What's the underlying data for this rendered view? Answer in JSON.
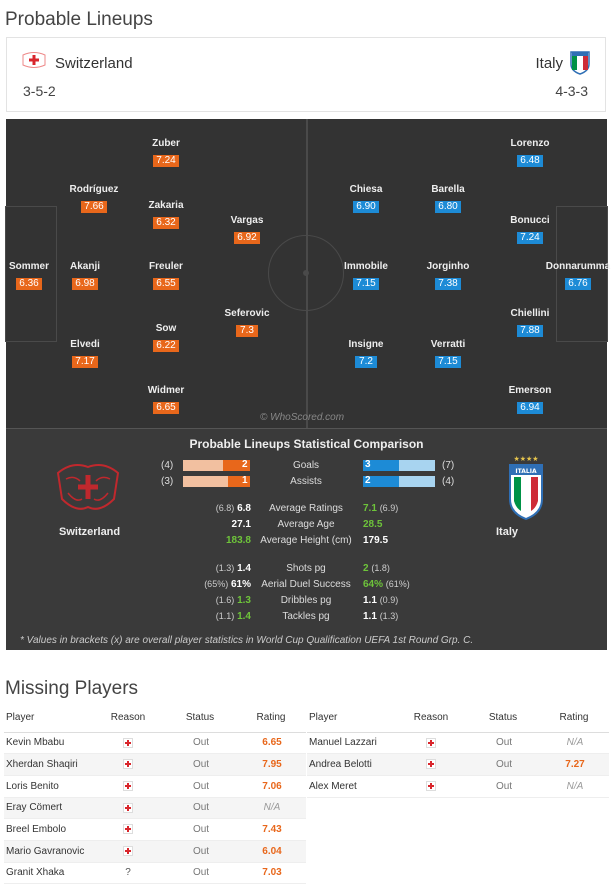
{
  "lineups": {
    "title": "Probable Lineups",
    "home": {
      "name": "Switzerland",
      "formation": "3-5-2"
    },
    "away": {
      "name": "Italy",
      "formation": "4-3-3"
    },
    "watermark": "© WhoScored.com",
    "home_players": [
      {
        "name": "Zuber",
        "rating": "7.24"
      },
      {
        "name": "Rodríguez",
        "rating": "7.66"
      },
      {
        "name": "Zakaria",
        "rating": "6.32"
      },
      {
        "name": "Vargas",
        "rating": "6.92"
      },
      {
        "name": "Sommer",
        "rating": "6.36"
      },
      {
        "name": "Akanji",
        "rating": "6.98"
      },
      {
        "name": "Freuler",
        "rating": "6.55"
      },
      {
        "name": "Seferovic",
        "rating": "7.3"
      },
      {
        "name": "Sow",
        "rating": "6.22"
      },
      {
        "name": "Elvedi",
        "rating": "7.17"
      },
      {
        "name": "Widmer",
        "rating": "6.65"
      }
    ],
    "away_players": [
      {
        "name": "Lorenzo",
        "rating": "6.48"
      },
      {
        "name": "Chiesa",
        "rating": "6.90"
      },
      {
        "name": "Barella",
        "rating": "6.80"
      },
      {
        "name": "Bonucci",
        "rating": "7.24"
      },
      {
        "name": "Immobile",
        "rating": "7.15"
      },
      {
        "name": "Jorginho",
        "rating": "7.38"
      },
      {
        "name": "Donnarumma",
        "rating": "6.76"
      },
      {
        "name": "Chiellini",
        "rating": "7.88"
      },
      {
        "name": "Insigne",
        "rating": "7.2"
      },
      {
        "name": "Verratti",
        "rating": "7.15"
      },
      {
        "name": "Emerson",
        "rating": "6.94"
      }
    ]
  },
  "comparison": {
    "title": "Probable Lineups Statistical Comparison",
    "home_team": "Switzerland",
    "away_team": "Italy",
    "goals": {
      "label": "Goals",
      "home_bracket": "(4)",
      "home": "2",
      "away": "3",
      "away_bracket": "(7)",
      "home_share": 0.4,
      "away_share": 0.5
    },
    "assists": {
      "label": "Assists",
      "home_bracket": "(3)",
      "home": "1",
      "away": "2",
      "away_bracket": "(4)",
      "home_share": 0.33,
      "away_share": 0.5
    },
    "stats": [
      {
        "label": "Average Ratings",
        "home_bracket": "(6.8)",
        "home": "6.8",
        "away": "7.1",
        "away_bracket": "(6.9)",
        "home_green": false,
        "away_green": true
      },
      {
        "label": "Average Age",
        "home_bracket": "",
        "home": "27.1",
        "away": "28.5",
        "away_bracket": "",
        "home_green": false,
        "away_green": true
      },
      {
        "label": "Average Height (cm)",
        "home_bracket": "",
        "home": "183.8",
        "away": "179.5",
        "away_bracket": "",
        "home_green": true,
        "away_green": false
      },
      {
        "label": "Shots pg",
        "home_bracket": "(1.3)",
        "home": "1.4",
        "away": "2",
        "away_bracket": "(1.8)",
        "home_green": false,
        "away_green": true
      },
      {
        "label": "Aerial Duel Success",
        "home_bracket": "(65%)",
        "home": "61%",
        "away": "64%",
        "away_bracket": "(61%)",
        "home_green": false,
        "away_green": true
      },
      {
        "label": "Dribbles pg",
        "home_bracket": "(1.6)",
        "home": "1.3",
        "away": "1.1",
        "away_bracket": "(0.9)",
        "home_green": true,
        "away_green": false
      },
      {
        "label": "Tackles pg",
        "home_bracket": "(1.1)",
        "home": "1.4",
        "away": "1.1",
        "away_bracket": "(1.3)",
        "home_green": true,
        "away_green": false
      }
    ],
    "footnote": "* Values in brackets (x) are overall player statistics in World Cup Qualification UEFA 1st Round Grp. C."
  },
  "missing": {
    "title": "Missing Players",
    "headers": {
      "player": "Player",
      "reason": "Reason",
      "status": "Status",
      "rating": "Rating"
    },
    "home": [
      {
        "player": "Kevin Mbabu",
        "reason": "injury",
        "status": "Out",
        "rating": "6.65"
      },
      {
        "player": "Xherdan Shaqiri",
        "reason": "injury",
        "status": "Out",
        "rating": "7.95"
      },
      {
        "player": "Loris Benito",
        "reason": "injury",
        "status": "Out",
        "rating": "7.06"
      },
      {
        "player": "Eray Cömert",
        "reason": "injury",
        "status": "Out",
        "rating": "N/A"
      },
      {
        "player": "Breel Embolo",
        "reason": "injury",
        "status": "Out",
        "rating": "7.43"
      },
      {
        "player": "Mario Gavranovic",
        "reason": "injury",
        "status": "Out",
        "rating": "6.04"
      },
      {
        "player": "Granit Xhaka",
        "reason": "?",
        "status": "Out",
        "rating": "7.03"
      }
    ],
    "away": [
      {
        "player": "Manuel Lazzari",
        "reason": "injury",
        "status": "Out",
        "rating": "N/A"
      },
      {
        "player": "Andrea Belotti",
        "reason": "injury",
        "status": "Out",
        "rating": "7.27"
      },
      {
        "player": "Alex Meret",
        "reason": "injury",
        "status": "Out",
        "rating": "N/A"
      }
    ]
  }
}
